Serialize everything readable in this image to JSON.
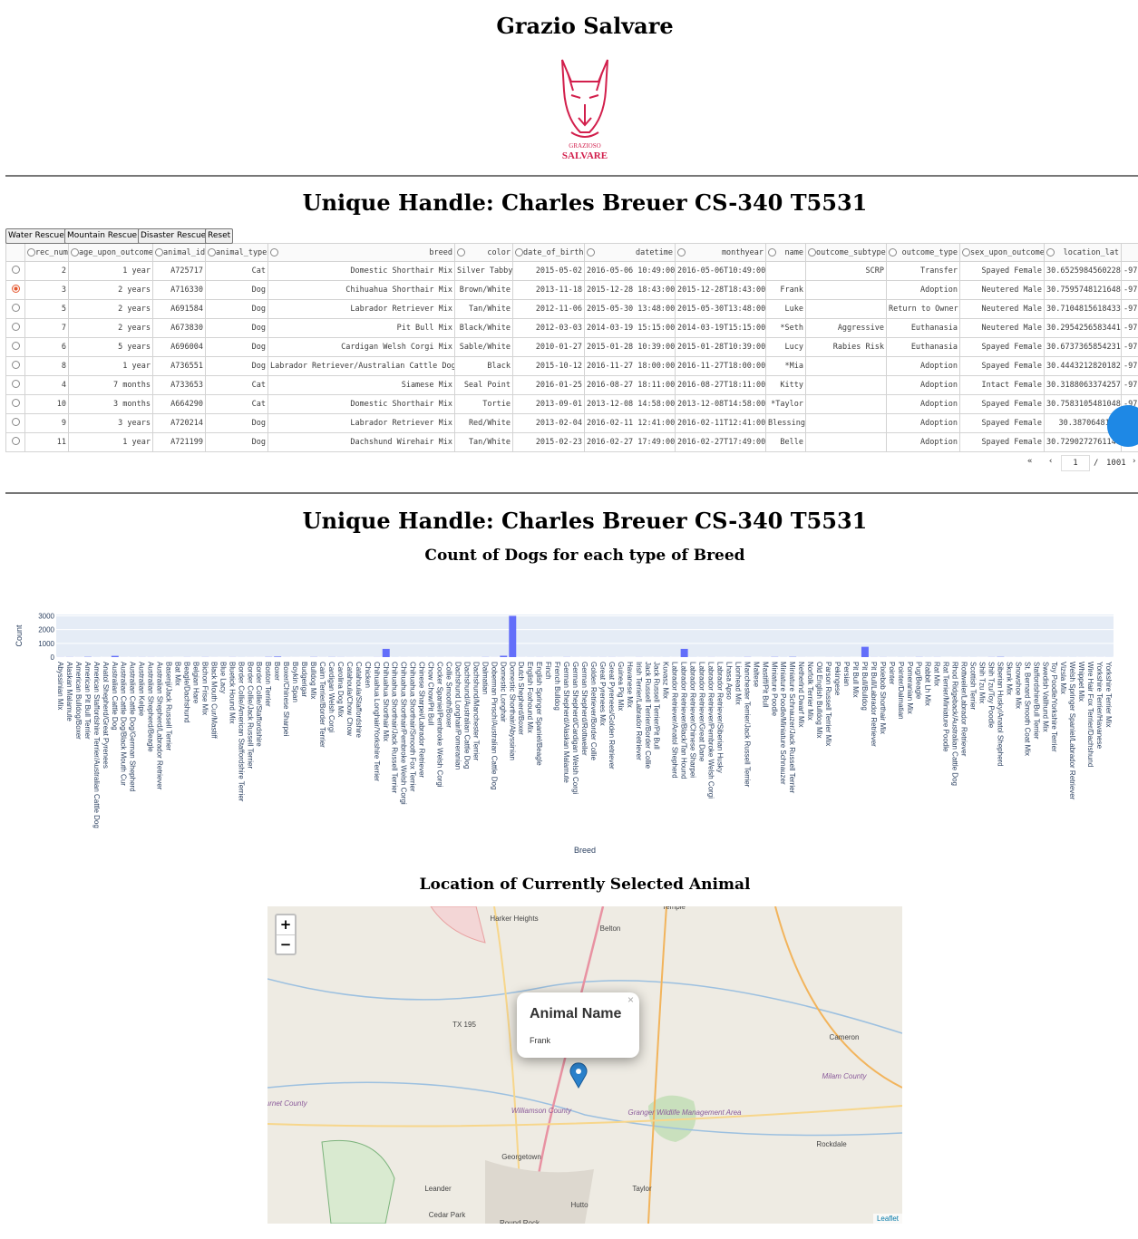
{
  "header": {
    "title": "Grazio Salvare",
    "logo_top": "GRAZIOSO",
    "logo_bottom": "SALVARE"
  },
  "handle": "Unique Handle: Charles Breuer CS-340 T5531",
  "buttons": [
    "Water Rescue",
    "Mountain Rescue",
    "Disaster Rescue",
    "Reset"
  ],
  "table": {
    "columns": [
      "rec_num",
      "age_upon_outcome",
      "animal_id",
      "animal_type",
      "breed",
      "color",
      "date_of_birth",
      "datetime",
      "monthyear",
      "name",
      "outcome_subtype",
      "outcome_type",
      "sex_upon_outcome",
      "location_lat"
    ],
    "selected_row": 1,
    "rows": [
      [
        "2",
        "1 year",
        "A725717",
        "Cat",
        "Domestic Shorthair Mix",
        "Silver Tabby",
        "2015-05-02",
        "2016-05-06 10:49:00",
        "2016-05-06T10:49:00",
        null,
        "SCRP",
        "Transfer",
        "Spayed Female",
        "30.6525984560228"
      ],
      [
        "3",
        "2 years",
        "A716330",
        "Dog",
        "Chihuahua Shorthair Mix",
        "Brown/White",
        "2013-11-18",
        "2015-12-28 18:43:00",
        "2015-12-28T18:43:00",
        "Frank",
        null,
        "Adoption",
        "Neutered Male",
        "30.7595748121648"
      ],
      [
        "5",
        "2 years",
        "A691584",
        "Dog",
        "Labrador Retriever Mix",
        "Tan/White",
        "2012-11-06",
        "2015-05-30 13:48:00",
        "2015-05-30T13:48:00",
        "Luke",
        null,
        "Return to Owner",
        "Neutered Male",
        "30.7104815618433"
      ],
      [
        "7",
        "2 years",
        "A673830",
        "Dog",
        "Pit Bull Mix",
        "Black/White",
        "2012-03-03",
        "2014-03-19 15:15:00",
        "2014-03-19T15:15:00",
        "*Seth",
        "Aggressive",
        "Euthanasia",
        "Neutered Male",
        "30.2954256583441"
      ],
      [
        "6",
        "5 years",
        "A696004",
        "Dog",
        "Cardigan Welsh Corgi Mix",
        "Sable/White",
        "2010-01-27",
        "2015-01-28 10:39:00",
        "2015-01-28T10:39:00",
        "Lucy",
        "Rabies Risk",
        "Euthanasia",
        "Spayed Female",
        "30.6737365854231"
      ],
      [
        "8",
        "1 year",
        "A736551",
        "Dog",
        "Labrador Retriever/Australian Cattle Dog",
        "Black",
        "2015-10-12",
        "2016-11-27 18:00:00",
        "2016-11-27T18:00:00",
        "*Mia",
        null,
        "Adoption",
        "Spayed Female",
        "30.4443212820182"
      ],
      [
        "4",
        "7 months",
        "A733653",
        "Cat",
        "Siamese Mix",
        "Seal Point",
        "2016-01-25",
        "2016-08-27 18:11:00",
        "2016-08-27T18:11:00",
        "Kitty",
        null,
        "Adoption",
        "Intact Female",
        "30.3188063374257"
      ],
      [
        "10",
        "3 months",
        "A664290",
        "Cat",
        "Domestic Shorthair Mix",
        "Tortie",
        "2013-09-01",
        "2013-12-08 14:58:00",
        "2013-12-08T14:58:00",
        "*Taylor",
        null,
        "Adoption",
        "Spayed Female",
        "30.7583105481048"
      ],
      [
        "9",
        "3 years",
        "A720214",
        "Dog",
        "Labrador Retriever Mix",
        "Red/White",
        "2013-02-04",
        "2016-02-11 12:41:00",
        "2016-02-11T12:41:00",
        "Blessing",
        null,
        "Adoption",
        "Spayed Female",
        "30.3870648199"
      ],
      [
        "11",
        "1 year",
        "A721199",
        "Dog",
        "Dachshund Wirehair Mix",
        "Tan/White",
        "2015-02-23",
        "2016-02-27 17:49:00",
        "2016-02-27T17:49:00",
        "Belle",
        null,
        "Adoption",
        "Spayed Female",
        "30.7290272761146"
      ]
    ],
    "long_prefix": "-97"
  },
  "pagination": {
    "current": "1",
    "separator": "/",
    "total": "1001"
  },
  "chart_data": {
    "type": "bar",
    "heading": "Unique Handle: Charles Breuer CS-340 T5531",
    "title": "Count of Dogs for each type of Breed",
    "y_label": "Count",
    "x_label": "Breed",
    "color": "#636efa",
    "ylim": [
      0,
      3100
    ],
    "yticks": [
      0,
      1000,
      2000,
      3000
    ],
    "grid": true,
    "categories": [
      "Abyssinian Mix",
      "Alaskan Malamute",
      "American Bulldog/Boxer",
      "American Pit Bull Terrier",
      "American Staffordshire Terrier/Australian Cattle Dog",
      "Anatol Shepherd/Great Pyrenees",
      "Australian Cattle Dog",
      "Australian Cattle Dog/Black Mouth Cur",
      "Australian Cattle Dog/German Shepherd",
      "Australian Kelpie",
      "Australian Shepherd/Beagle",
      "Australian Shepherd/Labrador Retriever",
      "Basenji/Jack Russell Terrier",
      "Bat Mix",
      "Beagle/Dachshund",
      "Belgian Hare",
      "Bichon Frise Mix",
      "Black Mouth Cur/Mastiff",
      "Blue Lacy",
      "Bluetick Hound Mix",
      "Border Collie/American Staffordshire Terrier",
      "Border Collie/Jack Russell Terrier",
      "Border Collie/Staffordshire",
      "Boston Terrier",
      "Boxer",
      "Boxer/Chinese Sharpei",
      "Boykin Span",
      "Budgerigar",
      "Bulldog Mix",
      "Cairn Terrier/Border Terrier",
      "Cardigan Welsh Corgi",
      "Carolina Dog Mix",
      "Catahoula/Chow Chow",
      "Catahoula/Staffordshire",
      "Chicken",
      "Chihuahua Longhair/Yorkshire Terrier",
      "Chihuahua Shorthair Mix",
      "Chihuahua Shorthair/Jack Russell Terrier",
      "Chihuahua Shorthair/Pembroke Welsh Corgi",
      "Chihuahua Shorthair/Smooth Fox Terrier",
      "Chinese Sharpei/Labrador Retriever",
      "Chow Chow/Pit Bull",
      "Cocker Spaniel/Pembroke Welsh Corgi",
      "Collie Smooth/Boxer",
      "Dachshund Longhair/Pomeranian",
      "Dachshund/Australian Cattle Dog",
      "Dachshund/Manchester Terrier",
      "Dalmatian",
      "Doberman Pinsch/Australian Cattle Dog",
      "Domestic Longhair",
      "Domestic Shorthair/Abyssinian",
      "Dutch Shepherd/Boxer",
      "English Foxhound Mix",
      "English Springer Spaniel/Beagle",
      "Finch",
      "French Bulldog",
      "German Shepherd/Alaskan Malamute",
      "German Shepherd/Cardigan Welsh Corgi",
      "German Shepherd/Rottweiler",
      "Golden Retriever/Border Collie",
      "Great Pyrenees Mix",
      "Great Pyrenees/Golden Retriever",
      "Guinea Pig Mix",
      "Havanese Mix",
      "Irish Terrier/Labrador Retriever",
      "Jack Russell Terrier/Border Collie",
      "Jack Russell Terrier/Pit Bull",
      "Kuvasz Mix",
      "Labrador Retriever/Anatol Shepherd",
      "Labrador Retriever/Black/Tan Hound",
      "Labrador Retriever/Chinese Sharpei",
      "Labrador Retriever/Great Dane",
      "Labrador Retriever/Pembroke Welsh Corgi",
      "Labrador Retriever/Siberian Husky",
      "Lhasa Apso",
      "Lionhead Mix",
      "Manchester Terrier/Jack Russell Terrier",
      "Maltese",
      "Mastiff/Pit Bull",
      "Miniature Poodle",
      "Miniature Poodle/Miniature Schnauzer",
      "Miniature Schnauzer/Jack Russell Terrier",
      "Netherlnd Dwarf Mix",
      "Norfolk Terrier Mix",
      "Old English Bulldog Mix",
      "Parson Russell Terrier Mix",
      "Pekingese",
      "Persian",
      "Pit Bull Mix",
      "Pit Bull/Bulldog",
      "Pit Bull/Labrador Retriever",
      "Pixiebob Shorthair Mix",
      "Pointer",
      "Pointer/Dalmatian",
      "Pomeranian Mix",
      "Pug/Beagle",
      "Rabbit Lh Mix",
      "Rat Mix",
      "Rat Terrier/Miniature Poodle",
      "Rhod Ridgeback/Australian Cattle Dog",
      "Rottweiler/Labrador Retriever",
      "Scottish Terrier",
      "Shih Tzu Mix",
      "Shih Tzu/Toy Poodle",
      "Siberian Husky/Anatol Shepherd",
      "Skunk Mix",
      "Snowshoe Mix",
      "St. Bernard Smooth Coat Mix",
      "Staffordshire/Bull Terrier",
      "Swedish Vallhund Mix",
      "Toy Poodle/Yorkshire Terrier",
      "Vizsla Mix",
      "Welsh Springer Spaniel/Labrador Retriever",
      "Whippet Mix",
      "Wire Hair Fox Terrier/Dachshund",
      "Yorkshire Terrier/Havanese",
      "Yorkshire Terrier Mix"
    ],
    "values": [
      5,
      8,
      3,
      20,
      4,
      2,
      90,
      3,
      4,
      6,
      5,
      4,
      3,
      1,
      6,
      2,
      8,
      3,
      2,
      7,
      4,
      3,
      2,
      15,
      40,
      3,
      2,
      1,
      12,
      3,
      10,
      6,
      3,
      2,
      1,
      5,
      600,
      4,
      3,
      2,
      3,
      4,
      3,
      2,
      3,
      4,
      2,
      10,
      3,
      100,
      3000,
      3,
      4,
      5,
      3,
      1,
      8,
      3,
      2,
      4,
      5,
      6,
      3,
      1,
      5,
      2,
      3,
      4,
      2,
      600,
      4,
      3,
      5,
      2,
      3,
      4,
      12,
      1,
      3,
      15,
      4,
      20,
      3,
      2,
      1,
      3,
      4,
      2,
      1,
      750,
      5,
      6,
      2,
      4,
      3,
      10,
      4,
      6,
      1,
      2,
      3,
      4,
      2,
      8,
      20,
      3,
      4,
      1,
      2,
      3,
      2,
      3,
      4,
      3,
      2,
      3,
      4
    ]
  },
  "map": {
    "title": "Location of Currently Selected Animal",
    "zoom_in": "+",
    "zoom_out": "−",
    "popup_title": "Animal Name",
    "popup_text": "Frank",
    "popup_close": "×",
    "attribution": "Leaflet",
    "places": [
      "Harker Heights",
      "Belton",
      "Temple",
      "TX 195",
      "Cameron",
      "Milam County",
      "Burnet County",
      "Williamson County",
      "Georgetown",
      "Granger Wildlife Management Area",
      "Rockdale",
      "Leander",
      "Taylor",
      "Hutto",
      "Cedar Park",
      "Round Rock"
    ]
  }
}
